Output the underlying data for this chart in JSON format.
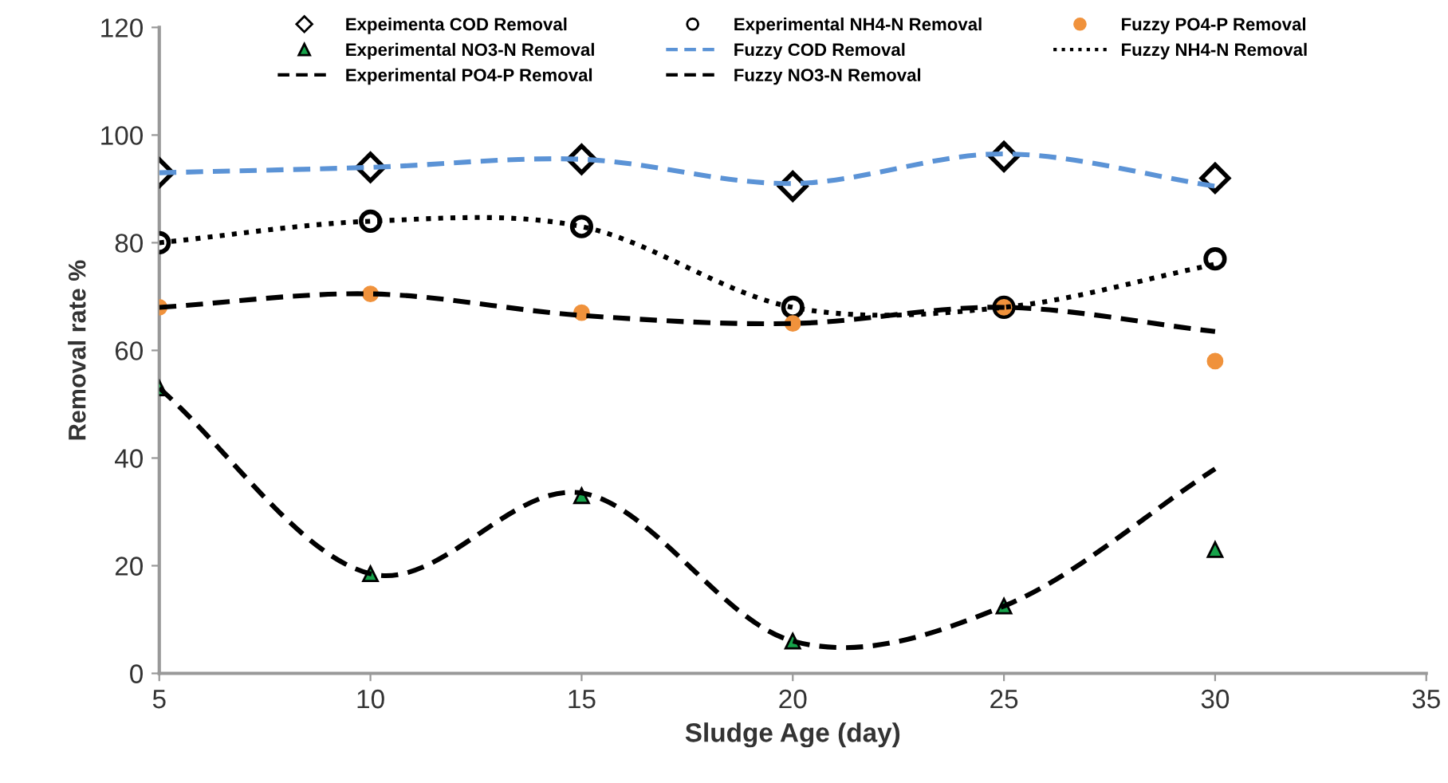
{
  "chart_data": {
    "type": "line",
    "xlabel": "Sludge Age (day)",
    "ylabel": "Removal rate %",
    "x": [
      5,
      10,
      15,
      20,
      25,
      30
    ],
    "xlim": [
      5,
      35
    ],
    "xticks": [
      5,
      10,
      15,
      20,
      25,
      30,
      35
    ],
    "ylim": [
      0,
      120
    ],
    "yticks": [
      0,
      20,
      40,
      60,
      80,
      100,
      120
    ],
    "grid": false,
    "legend": "top",
    "series": [
      {
        "name": "Expeimenta COD Removal",
        "type": "scatter",
        "marker": "diamond",
        "color": "#ffffff",
        "values": [
          93,
          94,
          95.5,
          90.5,
          96,
          92
        ]
      },
      {
        "name": "Experimental NH4-N Removal",
        "type": "scatter",
        "marker": "circle",
        "color": "#ffffff",
        "values": [
          80,
          84,
          83,
          68,
          68,
          77
        ]
      },
      {
        "name": "Fuzzy PO4-P Removal",
        "type": "scatter",
        "marker": "circle",
        "color": "#f0923c",
        "values": [
          68,
          70.5,
          67,
          65,
          68,
          58
        ]
      },
      {
        "name": "Experimental NO3-N Removal",
        "type": "scatter",
        "marker": "triangle",
        "color": "#16a34a",
        "values": [
          53,
          18.5,
          33,
          6,
          12.5,
          23
        ]
      },
      {
        "name": "Fuzzy COD Removal",
        "line_style": "dashed",
        "color": "#5b93d6",
        "values": [
          93,
          94,
          95.5,
          91,
          96.5,
          90.5
        ]
      },
      {
        "name": "Fuzzy NH4-N Removal",
        "line_style": "dotted",
        "color": "#000000",
        "values": [
          80,
          84,
          83,
          68,
          68,
          76
        ]
      },
      {
        "name": "Experimental PO4-P Removal",
        "line_style": "dashed",
        "color": "#000000",
        "values": [
          68,
          70.5,
          66.5,
          65,
          68,
          63.5
        ]
      },
      {
        "name": "Fuzzy NO3-N Removal",
        "line_style": "dashed",
        "color": "#000000",
        "values": [
          53,
          18.5,
          33.5,
          6,
          12.5,
          38
        ]
      }
    ]
  }
}
